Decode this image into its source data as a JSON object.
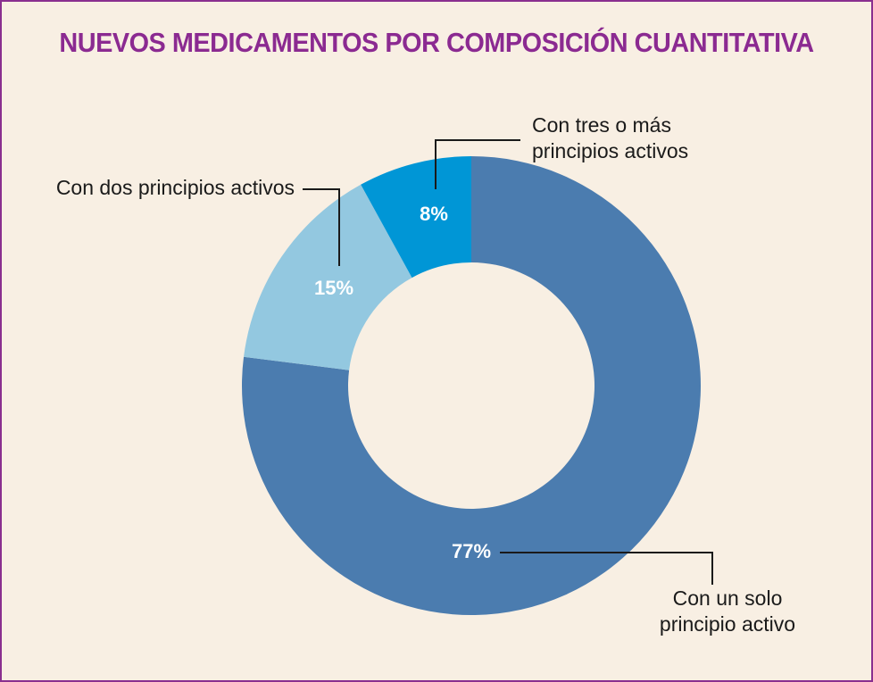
{
  "chart_data": {
    "type": "pie",
    "title": "NUEVOS MEDICAMENTOS POR COMPOSICIÓN CUANTITATIVA",
    "slices": [
      {
        "name": "Con un solo principio activo",
        "label_lines": [
          "Con un solo",
          "principio activo"
        ],
        "value": 77,
        "value_label": "77%",
        "color": "#4b7caf"
      },
      {
        "name": "Con dos principios activos",
        "label_lines": [
          "Con dos principios activos"
        ],
        "value": 15,
        "value_label": "15%",
        "color": "#93c8e0"
      },
      {
        "name": "Con tres o más principios activos",
        "label_lines": [
          "Con tres o más",
          "principios activos"
        ],
        "value": 8,
        "value_label": "8%",
        "color": "#0096d6"
      }
    ],
    "start": "12 o'clock",
    "direction": "clockwise",
    "donut": true
  },
  "colors": {
    "title": "#8b2a91",
    "border": "#8a2f8f",
    "background": "#f8efe3",
    "leader": "#1a1a1a"
  }
}
